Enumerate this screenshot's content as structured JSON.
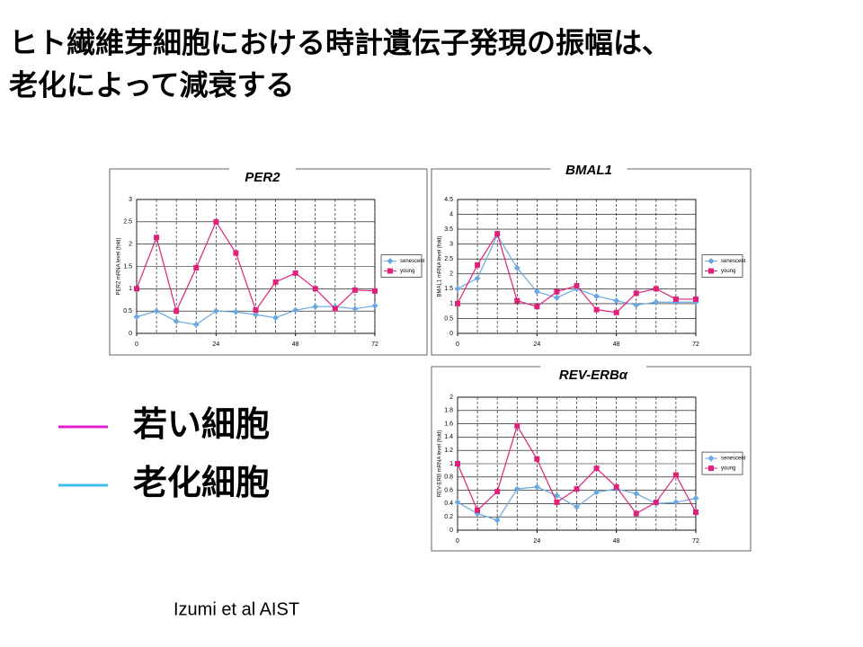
{
  "title": [
    "ヒト繊維芽細胞における時計遺伝子発現の振幅は、",
    "老化によって減衰する"
  ],
  "legend": [
    {
      "label": "若い細胞",
      "color": "#e020d0"
    },
    {
      "label": "老化細胞",
      "color": "#40c0f0"
    }
  ],
  "citation": "Izumi et al   AIST",
  "chart_data": [
    {
      "type": "line",
      "title": "PER2",
      "y_label": "PER2 mRNA level (fold)",
      "x": [
        0,
        6,
        12,
        18,
        24,
        30,
        36,
        42,
        48,
        54,
        60,
        66,
        72
      ],
      "xlim": [
        0,
        72
      ],
      "xticks": [
        0,
        24,
        48,
        72
      ],
      "ylim": [
        0,
        3
      ],
      "yticks": [
        0,
        0.5,
        1,
        1.5,
        2,
        2.5,
        3
      ],
      "grid": true,
      "legend": "right",
      "series": [
        {
          "name": "senescent",
          "color": "#6aa8e0",
          "marker": "diamond",
          "values": [
            0.37,
            0.5,
            0.27,
            0.2,
            0.5,
            0.48,
            0.42,
            0.35,
            0.52,
            0.6,
            0.6,
            0.55,
            0.62
          ]
        },
        {
          "name": "young",
          "color": "#e0207a",
          "marker": "square",
          "values": [
            1.0,
            2.15,
            0.5,
            1.47,
            2.5,
            1.8,
            0.52,
            1.15,
            1.35,
            1.0,
            0.55,
            0.97,
            0.95
          ]
        }
      ]
    },
    {
      "type": "line",
      "title": "BMAL1",
      "y_label": "BMAL1 mRNA level (fold)",
      "x": [
        0,
        6,
        12,
        18,
        24,
        30,
        36,
        42,
        48,
        54,
        60,
        66,
        72
      ],
      "xlim": [
        0,
        72
      ],
      "xticks": [
        0,
        24,
        48,
        72
      ],
      "ylim": [
        0,
        4.5
      ],
      "yticks": [
        0,
        0.5,
        1,
        1.5,
        2,
        2.5,
        3,
        3.5,
        4,
        4.5
      ],
      "grid": true,
      "legend": "right",
      "series": [
        {
          "name": "senescent",
          "color": "#6aa8e0",
          "marker": "diamond",
          "values": [
            1.5,
            1.85,
            3.3,
            2.2,
            1.4,
            1.2,
            1.5,
            1.25,
            1.1,
            0.95,
            1.05,
            1.05,
            1.05
          ]
        },
        {
          "name": "young",
          "color": "#e0207a",
          "marker": "square",
          "values": [
            1.0,
            2.3,
            3.35,
            1.1,
            0.9,
            1.4,
            1.6,
            0.8,
            0.7,
            1.35,
            1.5,
            1.15,
            1.15
          ]
        }
      ]
    },
    {
      "type": "line",
      "title": "REV-ERBα",
      "y_label": "REV-ERB mRNA level (fold)",
      "x": [
        0,
        6,
        12,
        18,
        24,
        30,
        36,
        42,
        48,
        54,
        60,
        66,
        72
      ],
      "xlim": [
        0,
        72
      ],
      "xticks": [
        0,
        24,
        48,
        72
      ],
      "ylim": [
        0,
        2
      ],
      "yticks": [
        0,
        0.2,
        0.4,
        0.6,
        0.8,
        1,
        1.2,
        1.4,
        1.6,
        1.8,
        2
      ],
      "grid": true,
      "legend": "right",
      "series": [
        {
          "name": "senescent",
          "color": "#6aa8e0",
          "marker": "diamond",
          "values": [
            0.42,
            0.25,
            0.15,
            0.62,
            0.65,
            0.52,
            0.35,
            0.57,
            0.62,
            0.55,
            0.4,
            0.42,
            0.48
          ]
        },
        {
          "name": "young",
          "color": "#e0207a",
          "marker": "square",
          "values": [
            1.0,
            0.3,
            0.58,
            1.57,
            1.07,
            0.42,
            0.62,
            0.93,
            0.65,
            0.25,
            0.42,
            0.83,
            0.27
          ]
        }
      ]
    }
  ]
}
